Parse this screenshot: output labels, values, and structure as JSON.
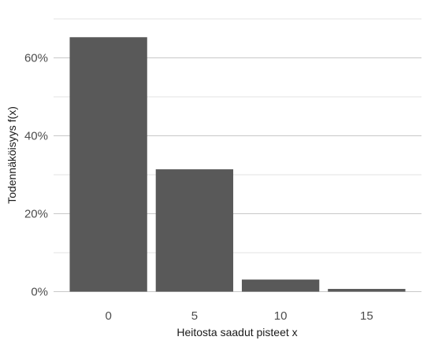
{
  "chart_data": {
    "type": "bar",
    "title": "",
    "xlabel": "Heitosta saadut pisteet x",
    "ylabel": "Todennäköisyys f(x)",
    "categories": [
      "0",
      "5",
      "10",
      "15"
    ],
    "values": [
      0.653,
      0.314,
      0.031,
      0.007
    ],
    "ylim": [
      0,
      0.7
    ],
    "y_major_ticks": [
      0,
      0.2,
      0.4,
      0.6
    ],
    "y_tick_labels": [
      "0%",
      "20%",
      "40%",
      "60%"
    ],
    "y_minor_ticks": [
      0.1,
      0.3,
      0.5,
      0.7
    ],
    "grid": true,
    "legend": "none",
    "colors": {
      "bar": "#595959",
      "grid_major": "#c8c8c8",
      "grid_minor": "#e3e3e3",
      "tick_text": "#4d4d4d",
      "axis_text": "#1a1a1a"
    }
  }
}
